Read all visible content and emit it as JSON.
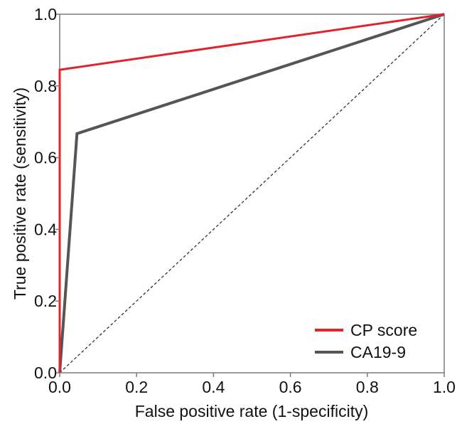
{
  "chart_data": {
    "type": "line",
    "xlabel": "False positive rate (1-specificity)",
    "ylabel": "True positive rate (sensitivity)",
    "xlim": [
      0,
      1
    ],
    "ylim": [
      0,
      1
    ],
    "xticks": [
      0.0,
      0.2,
      0.4,
      0.6,
      0.8,
      1.0
    ],
    "yticks": [
      0.0,
      0.2,
      0.4,
      0.6,
      0.8,
      1.0
    ],
    "xtick_labels": [
      "0.0",
      "0.2",
      "0.4",
      "0.6",
      "0.8",
      "1.0"
    ],
    "ytick_labels": [
      "0.0",
      "0.2",
      "0.4",
      "0.6",
      "0.8",
      "1.0"
    ],
    "grid": false,
    "legend_position": "bottom-right",
    "reference_line": {
      "style": "dashed",
      "x": [
        0,
        1
      ],
      "y": [
        0,
        1
      ]
    },
    "series": [
      {
        "name": "CP score",
        "color": "#e0242b",
        "x": [
          0,
          0,
          1
        ],
        "y": [
          0,
          0.845,
          1
        ]
      },
      {
        "name": "CA19-9",
        "color": "#555555",
        "x": [
          0,
          0.045,
          1
        ],
        "y": [
          0,
          0.667,
          1
        ]
      }
    ]
  }
}
